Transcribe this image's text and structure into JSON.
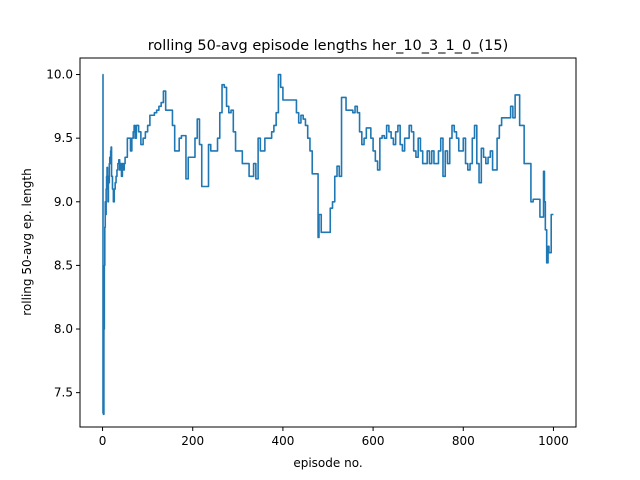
{
  "chart_data": {
    "type": "line",
    "title": "rolling 50-avg episode lengths her_10_3_1_0_(15)",
    "xlabel": "episode no.",
    "ylabel": "rolling 50-avg ep. length",
    "xlim": [
      -50,
      1050
    ],
    "ylim": [
      7.23,
      10.13
    ],
    "xticks": [
      0,
      200,
      400,
      600,
      800,
      1000
    ],
    "yticks": [
      7.5,
      8.0,
      8.5,
      9.0,
      9.5,
      10.0
    ],
    "xtick_labels": [
      "0",
      "200",
      "400",
      "600",
      "800",
      "1000"
    ],
    "ytick_labels": [
      "7.5",
      "8.0",
      "8.5",
      "9.0",
      "9.5",
      "10.0"
    ],
    "grid": false,
    "series": [
      {
        "color": "#1f77b4",
        "x": [
          0,
          1,
          2,
          3,
          4,
          5,
          6,
          7,
          8,
          9,
          10,
          11,
          12,
          13,
          14,
          15,
          16,
          17,
          18,
          19,
          20,
          22,
          24,
          26,
          28,
          30,
          32,
          34,
          36,
          38,
          40,
          42,
          44,
          46,
          48,
          50,
          55,
          60,
          62,
          65,
          68,
          70,
          72,
          75,
          80,
          85,
          90,
          95,
          100,
          105,
          110,
          115,
          120,
          125,
          130,
          135,
          140,
          145,
          150,
          155,
          160,
          165,
          170,
          175,
          180,
          185,
          190,
          195,
          200,
          205,
          210,
          215,
          220,
          225,
          230,
          235,
          240,
          245,
          250,
          255,
          260,
          265,
          270,
          275,
          280,
          285,
          290,
          295,
          300,
          305,
          310,
          315,
          320,
          325,
          330,
          335,
          340,
          345,
          350,
          355,
          360,
          365,
          370,
          375,
          380,
          385,
          390,
          395,
          400,
          405,
          410,
          415,
          420,
          425,
          430,
          435,
          440,
          445,
          450,
          455,
          460,
          465,
          470,
          475,
          478,
          480,
          485,
          490,
          495,
          500,
          505,
          510,
          515,
          520,
          525,
          530,
          535,
          540,
          545,
          550,
          555,
          560,
          565,
          570,
          575,
          580,
          585,
          590,
          595,
          600,
          605,
          610,
          615,
          620,
          625,
          630,
          635,
          640,
          645,
          650,
          655,
          660,
          665,
          670,
          675,
          680,
          685,
          690,
          695,
          700,
          705,
          710,
          715,
          720,
          725,
          730,
          735,
          740,
          745,
          750,
          755,
          760,
          765,
          770,
          775,
          780,
          785,
          790,
          795,
          800,
          805,
          810,
          815,
          820,
          825,
          830,
          835,
          840,
          845,
          850,
          855,
          860,
          865,
          870,
          875,
          880,
          885,
          890,
          895,
          900,
          905,
          910,
          915,
          920,
          925,
          930,
          935,
          940,
          945,
          950,
          955,
          960,
          965,
          970,
          975,
          978,
          980,
          982,
          985,
          988,
          990,
          995,
          1000
        ],
        "y": [
          10.0,
          7.34,
          7.33,
          8.0,
          8.5,
          8.8,
          9.0,
          8.9,
          9.1,
          9.2,
          9.27,
          9.1,
          9.0,
          9.2,
          9.15,
          9.3,
          9.35,
          9.3,
          9.4,
          9.43,
          9.2,
          9.1,
          9.0,
          9.1,
          9.15,
          9.2,
          9.25,
          9.3,
          9.33,
          9.25,
          9.3,
          9.2,
          9.3,
          9.25,
          9.3,
          9.35,
          9.5,
          9.5,
          9.4,
          9.5,
          9.55,
          9.6,
          9.5,
          9.6,
          9.55,
          9.45,
          9.5,
          9.55,
          9.6,
          9.68,
          9.68,
          9.7,
          9.72,
          9.75,
          9.78,
          9.87,
          9.72,
          9.72,
          9.72,
          9.6,
          9.4,
          9.4,
          9.5,
          9.52,
          9.52,
          9.18,
          9.35,
          9.35,
          9.35,
          9.5,
          9.65,
          9.45,
          9.12,
          9.12,
          9.12,
          9.45,
          9.4,
          9.4,
          9.4,
          9.5,
          9.7,
          9.92,
          9.9,
          9.75,
          9.7,
          9.72,
          9.55,
          9.4,
          9.4,
          9.4,
          9.3,
          9.3,
          9.3,
          9.2,
          9.2,
          9.3,
          9.18,
          9.5,
          9.4,
          9.4,
          9.5,
          9.5,
          9.5,
          9.55,
          9.6,
          9.7,
          10.0,
          9.9,
          9.8,
          9.8,
          9.8,
          9.8,
          9.8,
          9.8,
          9.7,
          9.62,
          9.68,
          9.65,
          9.6,
          9.5,
          9.4,
          9.22,
          9.22,
          9.22,
          8.72,
          8.9,
          8.76,
          8.76,
          8.76,
          8.76,
          8.95,
          9.0,
          9.2,
          9.28,
          9.2,
          9.82,
          9.82,
          9.72,
          9.72,
          9.72,
          9.7,
          9.75,
          9.7,
          9.55,
          9.45,
          9.5,
          9.58,
          9.58,
          9.5,
          9.4,
          9.32,
          9.25,
          9.5,
          9.52,
          9.5,
          9.6,
          9.55,
          9.5,
          9.45,
          9.55,
          9.6,
          9.45,
          9.4,
          9.5,
          9.5,
          9.6,
          9.55,
          9.4,
          9.35,
          9.5,
          9.4,
          9.3,
          9.3,
          9.4,
          9.3,
          9.4,
          9.3,
          9.3,
          9.4,
          9.5,
          9.2,
          9.4,
          9.3,
          9.5,
          9.6,
          9.55,
          9.5,
          9.4,
          9.4,
          9.5,
          9.3,
          9.25,
          9.3,
          9.5,
          9.6,
          9.3,
          9.15,
          9.42,
          9.35,
          9.3,
          9.35,
          9.4,
          9.25,
          9.25,
          9.5,
          9.6,
          9.66,
          9.66,
          9.66,
          9.66,
          9.75,
          9.66,
          9.84,
          9.84,
          9.6,
          9.6,
          9.3,
          9.3,
          9.3,
          9.0,
          9.02,
          9.02,
          9.02,
          8.88,
          8.88,
          9.24,
          9.0,
          8.78,
          8.52,
          8.65,
          8.6,
          8.9,
          8.9
        ]
      }
    ]
  }
}
